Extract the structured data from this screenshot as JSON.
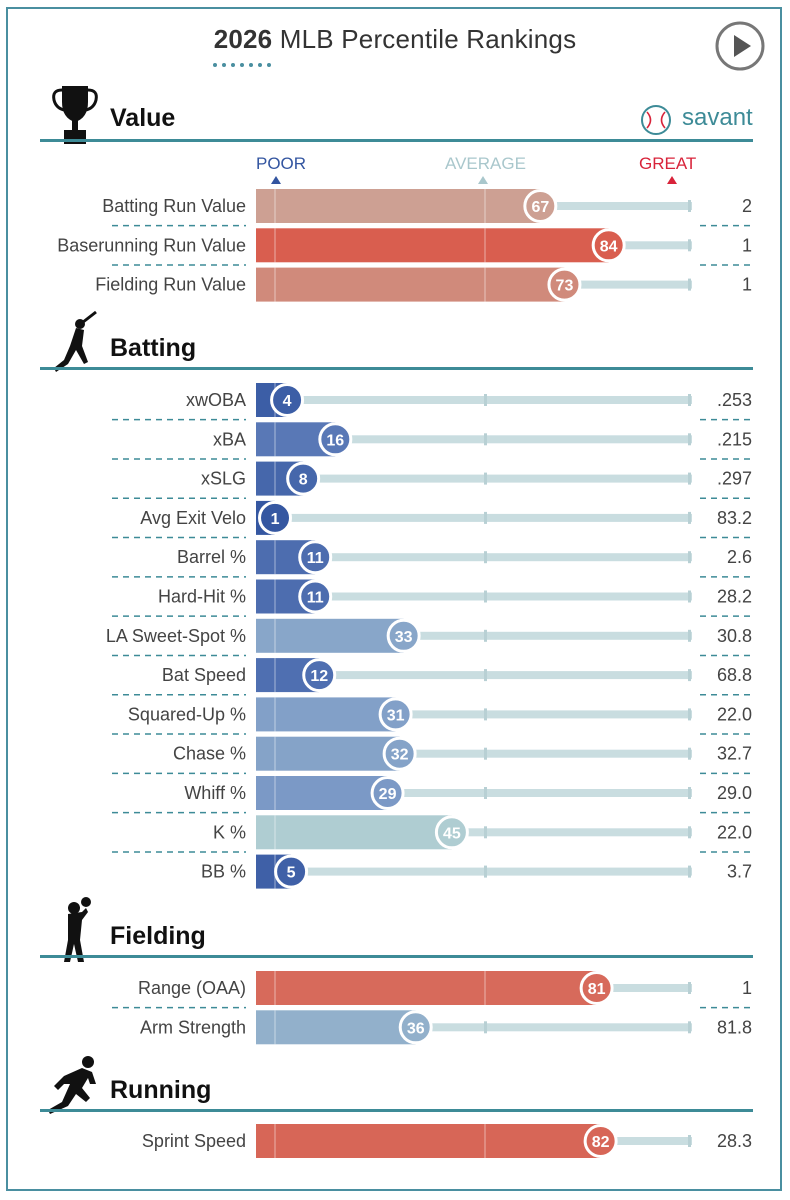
{
  "header": {
    "title_year": "2026",
    "title_rest": "MLB Percentile Rankings",
    "play_button": "play-icon"
  },
  "brand": {
    "label": "savant",
    "icon": "baseball-icon"
  },
  "scale": {
    "poor": "POOR",
    "average": "AVERAGE",
    "great": "GREAT",
    "poor_color": "#3355a0",
    "average_color": "#a9c7cc",
    "great_color": "#d8233a"
  },
  "colors": {
    "rule": "#3d8b97",
    "track": "#c9dde0",
    "frame": "#4a8fa0"
  },
  "chart_data": {
    "type": "bar",
    "title": "2026 MLB Percentile Rankings",
    "xlim": [
      0,
      100
    ],
    "sections": [
      {
        "name": "Value",
        "icon": "trophy-icon",
        "metrics": [
          {
            "label": "Batting Run Value",
            "percentile": 67,
            "value": "2"
          },
          {
            "label": "Baserunning Run Value",
            "percentile": 84,
            "value": "1"
          },
          {
            "label": "Fielding Run Value",
            "percentile": 73,
            "value": "1"
          }
        ]
      },
      {
        "name": "Batting",
        "icon": "batter-icon",
        "metrics": [
          {
            "label": "xwOBA",
            "percentile": 4,
            "value": ".253"
          },
          {
            "label": "xBA",
            "percentile": 16,
            "value": ".215"
          },
          {
            "label": "xSLG",
            "percentile": 8,
            "value": ".297"
          },
          {
            "label": "Avg Exit Velo",
            "percentile": 1,
            "value": "83.2"
          },
          {
            "label": "Barrel %",
            "percentile": 11,
            "value": "2.6"
          },
          {
            "label": "Hard-Hit %",
            "percentile": 11,
            "value": "28.2"
          },
          {
            "label": "LA Sweet-Spot %",
            "percentile": 33,
            "value": "30.8"
          },
          {
            "label": "Bat Speed",
            "percentile": 12,
            "value": "68.8"
          },
          {
            "label": "Squared-Up %",
            "percentile": 31,
            "value": "22.0"
          },
          {
            "label": "Chase %",
            "percentile": 32,
            "value": "32.7"
          },
          {
            "label": "Whiff %",
            "percentile": 29,
            "value": "29.0"
          },
          {
            "label": "K %",
            "percentile": 45,
            "value": "22.0"
          },
          {
            "label": "BB %",
            "percentile": 5,
            "value": "3.7"
          }
        ]
      },
      {
        "name": "Fielding",
        "icon": "fielder-icon",
        "metrics": [
          {
            "label": "Range (OAA)",
            "percentile": 81,
            "value": "1"
          },
          {
            "label": "Arm Strength",
            "percentile": 36,
            "value": "81.8"
          }
        ]
      },
      {
        "name": "Running",
        "icon": "runner-icon",
        "metrics": [
          {
            "label": "Sprint Speed",
            "percentile": 82,
            "value": "28.3"
          }
        ]
      }
    ]
  }
}
